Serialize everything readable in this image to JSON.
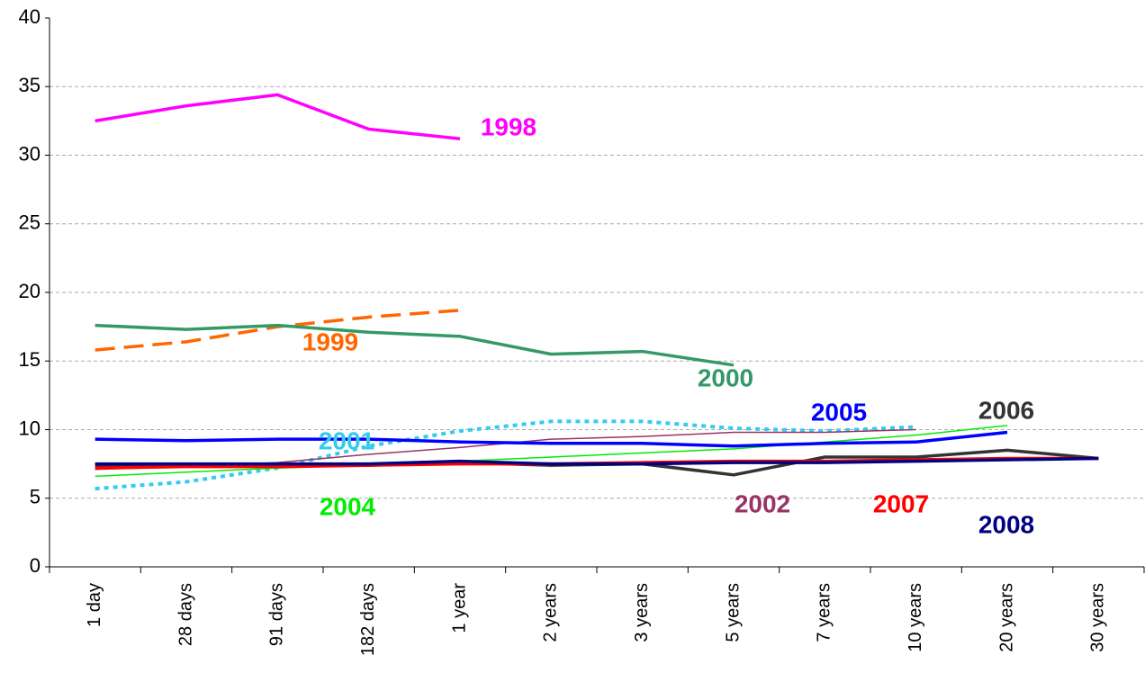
{
  "chart_data": {
    "type": "line",
    "categories": [
      "1 day",
      "28 days",
      "91 days",
      "182 days",
      "1 year",
      "2 years",
      "3 years",
      "5 years",
      "7 years",
      "10 years",
      "20 years",
      "30 years"
    ],
    "ylim": [
      0,
      40
    ],
    "yticks": [
      0,
      5,
      10,
      15,
      20,
      25,
      30,
      35,
      40
    ],
    "grid": true,
    "series": [
      {
        "name": "1998",
        "color": "#ff00ff",
        "width": 3.5,
        "dash": "solid",
        "values": [
          32.5,
          33.6,
          34.4,
          31.9,
          31.2,
          null,
          null,
          null,
          null,
          null,
          null,
          null
        ]
      },
      {
        "name": "1999",
        "color": "#ff6600",
        "width": 3.5,
        "dash": "dashed",
        "values": [
          15.8,
          16.4,
          17.5,
          18.2,
          18.7,
          null,
          null,
          null,
          null,
          null,
          null,
          null
        ]
      },
      {
        "name": "2000",
        "color": "#339966",
        "width": 3.5,
        "dash": "solid",
        "values": [
          17.6,
          17.3,
          17.6,
          17.1,
          16.8,
          15.5,
          15.7,
          14.7,
          null,
          null,
          null,
          null
        ]
      },
      {
        "name": "2001",
        "color": "#33ccee",
        "width": 4,
        "dash": "dotted",
        "values": [
          5.7,
          6.2,
          7.2,
          8.8,
          9.9,
          10.6,
          10.6,
          10.1,
          9.9,
          10.2,
          null,
          null
        ]
      },
      {
        "name": "2002",
        "color": "#993366",
        "width": 1.5,
        "dash": "solid",
        "values": [
          7.1,
          7.3,
          7.6,
          8.2,
          8.7,
          9.3,
          9.5,
          9.8,
          9.8,
          10.0,
          null,
          null
        ]
      },
      {
        "name": "2004",
        "color": "#00ee00",
        "width": 1.5,
        "dash": "solid",
        "values": [
          6.6,
          6.9,
          7.2,
          7.4,
          7.7,
          8.0,
          8.3,
          8.6,
          9.1,
          9.6,
          10.3,
          null
        ]
      },
      {
        "name": "2005",
        "color": "#0000ff",
        "width": 3.5,
        "dash": "solid",
        "values": [
          9.3,
          9.2,
          9.3,
          9.3,
          9.1,
          9.0,
          9.0,
          8.8,
          9.0,
          9.1,
          9.8,
          null
        ]
      },
      {
        "name": "2006",
        "color": "#333333",
        "width": 3.5,
        "dash": "solid",
        "values": [
          7.4,
          7.4,
          7.4,
          7.4,
          7.6,
          7.4,
          7.5,
          6.7,
          8.0,
          8.0,
          8.5,
          7.9
        ]
      },
      {
        "name": "2007",
        "color": "#ff0000",
        "width": 3.5,
        "dash": "solid",
        "values": [
          7.2,
          7.3,
          7.3,
          7.4,
          7.5,
          7.5,
          7.6,
          7.7,
          7.7,
          7.8,
          7.9,
          7.9
        ]
      },
      {
        "name": "2008",
        "color": "#000080",
        "width": 3.5,
        "dash": "solid",
        "values": [
          7.5,
          7.5,
          7.5,
          7.5,
          7.7,
          7.5,
          7.5,
          7.6,
          7.6,
          7.7,
          7.8,
          7.9
        ]
      }
    ]
  }
}
